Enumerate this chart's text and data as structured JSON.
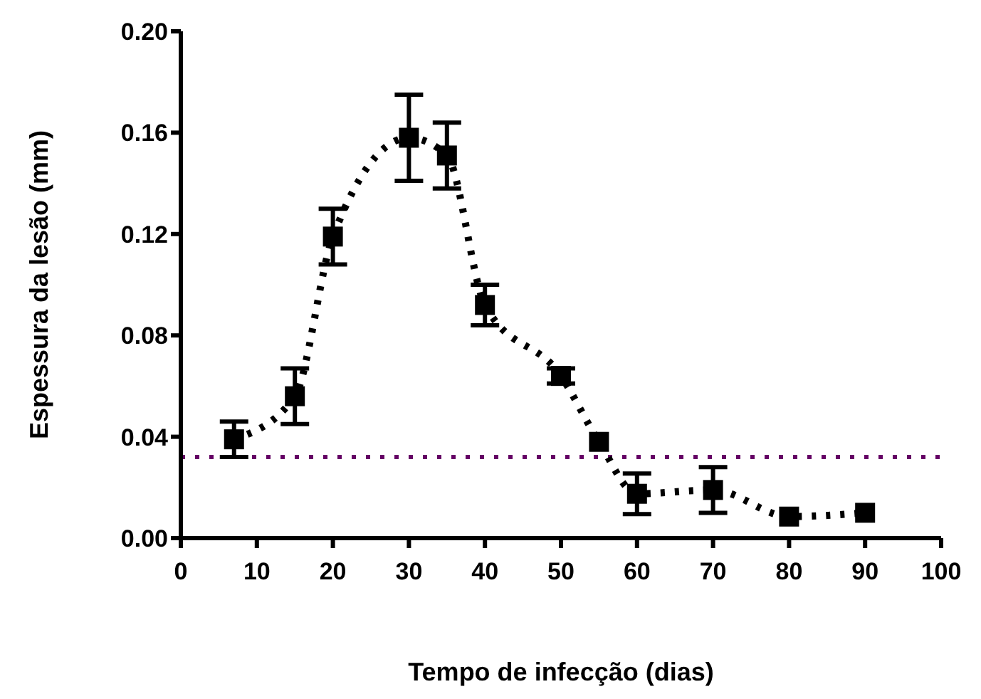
{
  "chart_data": {
    "type": "line",
    "xlabel": "Tempo de infecção (dias)",
    "ylabel": "Espessura da lesão (mm)",
    "x": [
      7,
      15,
      20,
      30,
      35,
      40,
      50,
      55,
      60,
      70,
      80,
      90
    ],
    "series": [
      {
        "color": "#000000",
        "values": [
          0.039,
          0.056,
          0.119,
          0.158,
          0.151,
          0.092,
          0.064,
          0.038,
          0.0175,
          0.019,
          0.0085,
          0.01
        ],
        "errors": [
          0.007,
          0.011,
          0.011,
          0.017,
          0.013,
          0.008,
          0.003,
          null,
          0.008,
          0.009,
          null,
          null
        ]
      }
    ],
    "xlim": [
      0,
      100
    ],
    "xticks": [
      0,
      10,
      20,
      30,
      40,
      50,
      60,
      70,
      80,
      90,
      100
    ],
    "ylim": [
      0,
      0.2
    ],
    "yticks": [
      {
        "value": 0,
        "label": "0.00"
      },
      {
        "value": 0.04,
        "label": "0.04"
      },
      {
        "value": 0.08,
        "label": "0.08"
      },
      {
        "value": 0.12,
        "label": "0.12"
      },
      {
        "value": 0.16,
        "label": "0.16"
      },
      {
        "value": 0.2,
        "label": "0.20"
      }
    ],
    "ref_lines": [
      {
        "axis": "y",
        "value": 0.032,
        "color": "#660066",
        "line_style": "dotted"
      }
    ],
    "marker": "square",
    "line_style": "dotted",
    "grid": false,
    "legend": false
  }
}
